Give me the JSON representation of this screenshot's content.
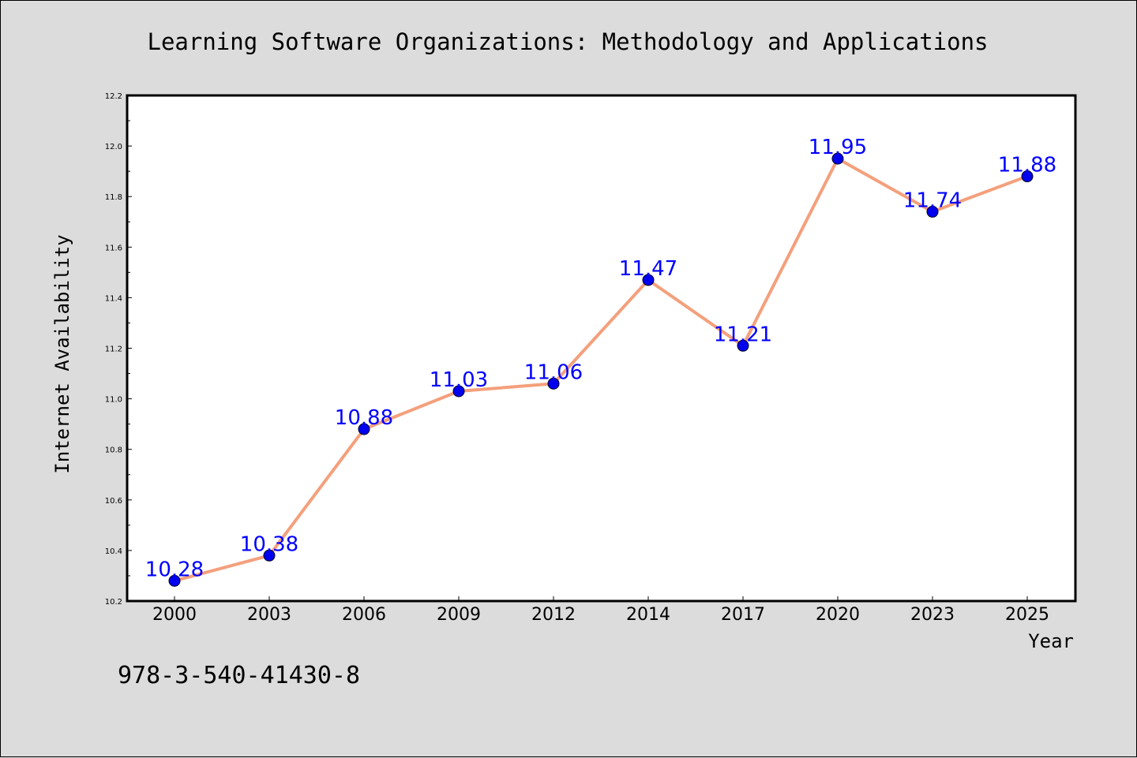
{
  "chart_data": {
    "type": "line",
    "title": "Learning Software Organizations: Methodology and Applications",
    "xlabel": "Year",
    "ylabel": "Internet Availability",
    "categories": [
      "2000",
      "2003",
      "2006",
      "2009",
      "2012",
      "2014",
      "2017",
      "2020",
      "2023",
      "2025"
    ],
    "values": [
      10.28,
      10.38,
      10.88,
      11.03,
      11.06,
      11.47,
      11.21,
      11.95,
      11.74,
      11.88
    ],
    "data_labels": [
      "10.28",
      "10.38",
      "10.88",
      "11.03",
      "11.06",
      "11.47",
      "11.21",
      "11.95",
      "11.74",
      "11.88"
    ],
    "ylim": [
      10.2,
      12.2
    ],
    "yticks": [
      "10.2",
      "10.4",
      "10.6",
      "10.8",
      "11.0",
      "11.2",
      "11.4",
      "11.6",
      "11.8",
      "12.0",
      "12.2"
    ],
    "grid": false,
    "line_color": "#f4a07c",
    "marker_color": "#0000ee",
    "label_color": "#0000ff"
  },
  "footer": {
    "isbn": "978-3-540-41430-8"
  }
}
